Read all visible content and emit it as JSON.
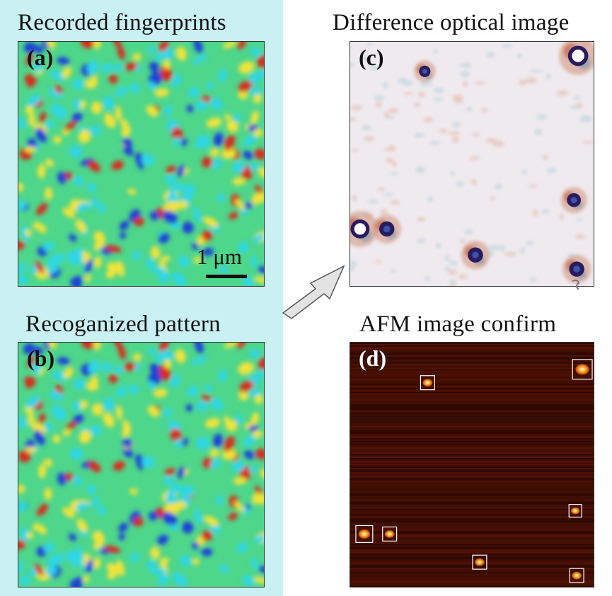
{
  "figure": {
    "titles": {
      "a": "Recorded fingerprints",
      "b": "Recoganized pattern",
      "c": "Difference optical image",
      "d": "AFM image confirm"
    },
    "panel_labels": {
      "a": "(a)",
      "b": "(b)",
      "c": "(c)",
      "d": "(d)"
    },
    "scale_bar_text": "1 μm",
    "colors": {
      "highlight_background": "#c9f1f3",
      "jet_blue": "#1f3fd8",
      "jet_cyan": "#2fd6e6",
      "jet_green": "#4ed68b",
      "jet_yellow": "#f2e33a",
      "jet_red": "#d92a1e",
      "diff_background": "#efeaee",
      "afm_background": "#3d0d04",
      "arrow_fill": "#e3e3e3"
    },
    "icons": {
      "arrow": "arrow-up-right-icon"
    },
    "detected_particle_count": 7
  }
}
